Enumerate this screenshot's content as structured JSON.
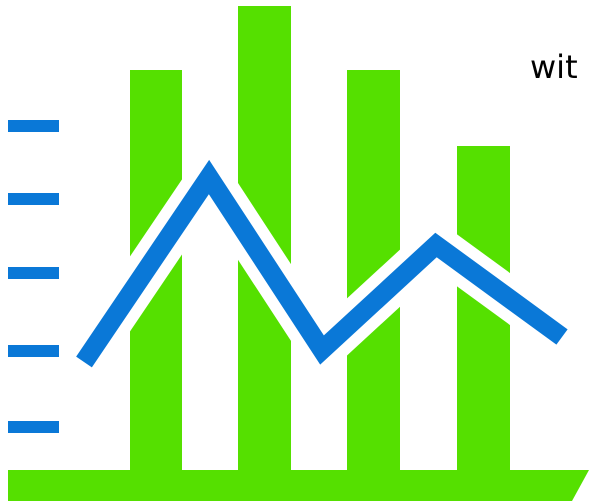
{
  "caption": "wit",
  "icon": "bar-and-line-chart-icon",
  "colors": {
    "bar": "#55E000",
    "line": "#0A78D7",
    "background": "#FFFFFF",
    "text": "#000000"
  }
}
